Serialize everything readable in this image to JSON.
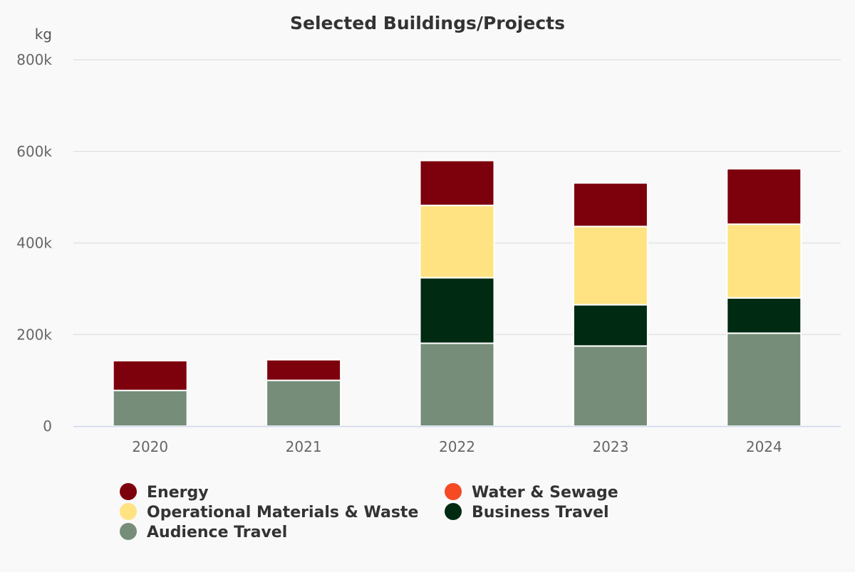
{
  "chart_data": {
    "type": "bar",
    "stacked": true,
    "title": "Selected Buildings/Projects",
    "y_unit": "kg",
    "ylim": [
      0,
      800000
    ],
    "y_ticks": [
      0,
      200000,
      400000,
      600000,
      800000
    ],
    "y_tick_labels": [
      "0",
      "200k",
      "400k",
      "600k",
      "800k"
    ],
    "categories": [
      "2020",
      "2021",
      "2022",
      "2023",
      "2024"
    ],
    "grid": true,
    "legend_position": "bottom",
    "series": [
      {
        "name": "Audience Travel",
        "color": "#768e79",
        "values": [
          78000,
          100000,
          181000,
          175000,
          203000
        ]
      },
      {
        "name": "Business Travel",
        "color": "#002a12",
        "values": [
          0,
          0,
          143000,
          90000,
          77000
        ]
      },
      {
        "name": "Operational Materials & Waste",
        "color": "#ffe383",
        "values": [
          0,
          0,
          158000,
          171000,
          161000
        ]
      },
      {
        "name": "Water & Sewage",
        "color": "#f54a24",
        "values": [
          0,
          0,
          0,
          0,
          0
        ]
      },
      {
        "name": "Energy",
        "color": "#7d000d",
        "values": [
          65000,
          45000,
          98000,
          95000,
          121000
        ]
      }
    ],
    "legend_order": [
      "Energy",
      "Water & Sewage",
      "Operational Materials & Waste",
      "Business Travel",
      "Audience Travel"
    ]
  }
}
